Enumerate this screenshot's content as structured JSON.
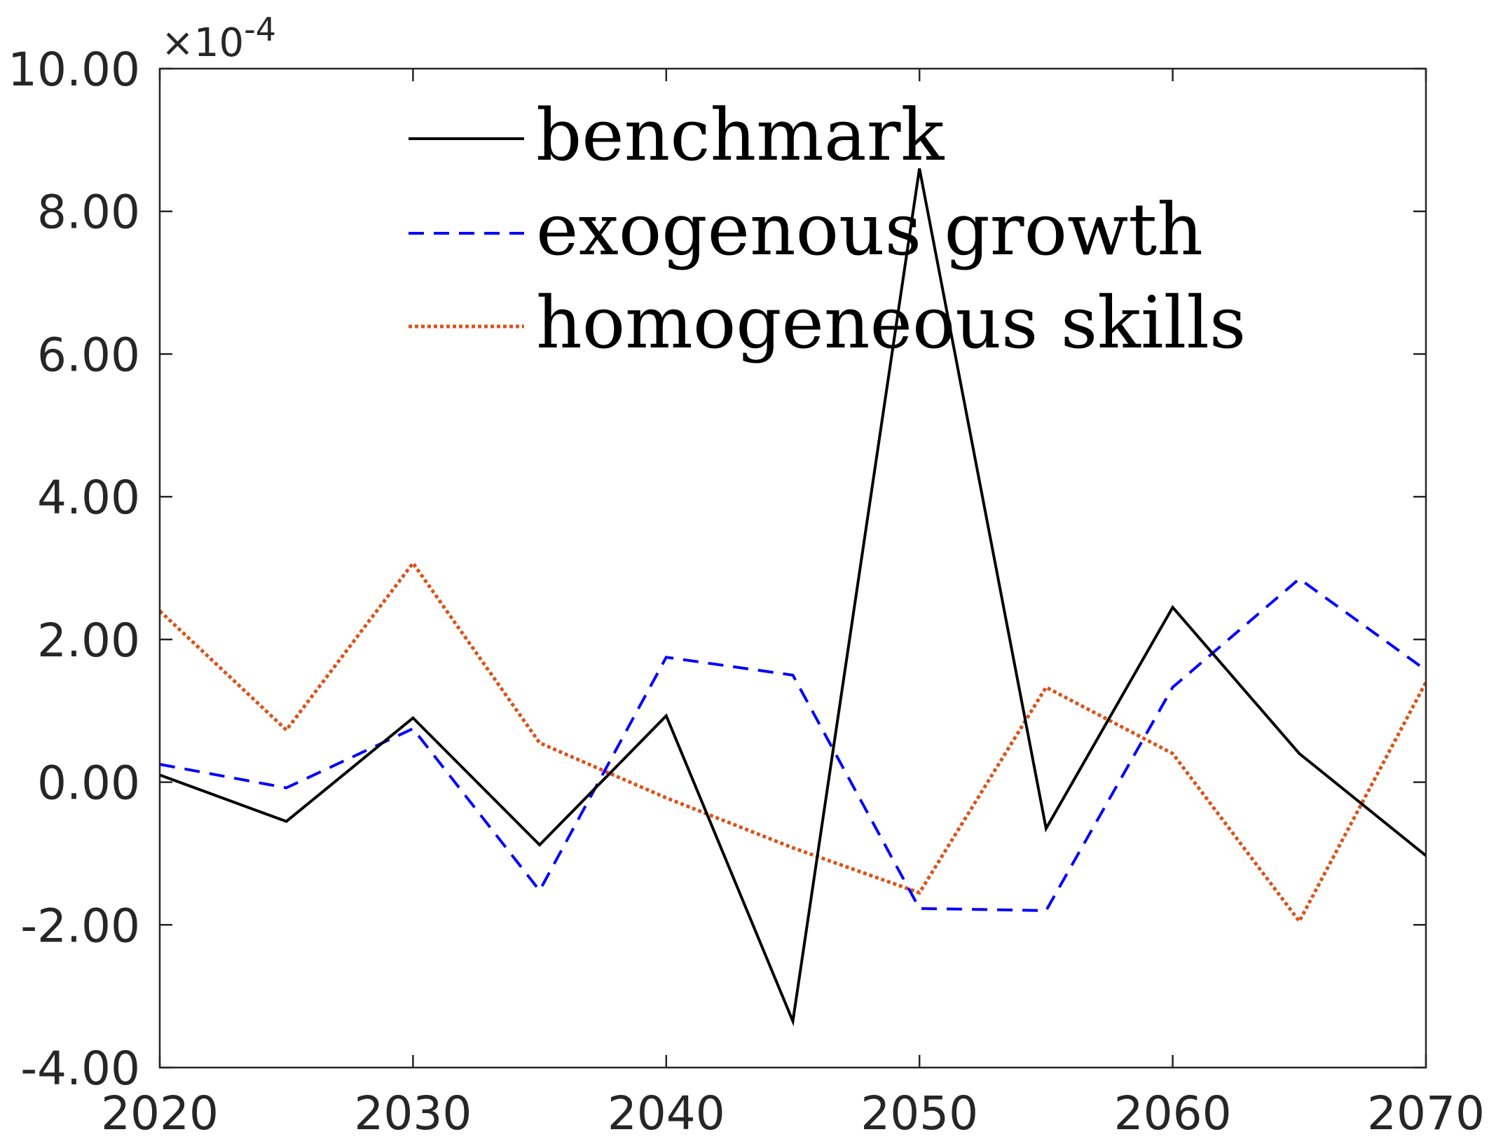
{
  "chart_data": {
    "type": "line",
    "exponent_prefix": "×10",
    "exponent_power": "-4",
    "x": [
      2020,
      2025,
      2030,
      2035,
      2040,
      2045,
      2050,
      2055,
      2060,
      2065,
      2070
    ],
    "xlim": [
      2020,
      2070
    ],
    "ylim": [
      -4,
      10
    ],
    "x_ticks": [
      2020,
      2030,
      2040,
      2050,
      2060,
      2070
    ],
    "x_tick_labels": [
      "2020",
      "2030",
      "2040",
      "2050",
      "2060",
      "2070"
    ],
    "y_ticks": [
      -4,
      -2,
      0,
      2,
      4,
      6,
      8,
      10
    ],
    "y_tick_labels": [
      "-4.00",
      "-2.00",
      "0.00",
      "2.00",
      "4.00",
      "6.00",
      "8.00",
      "10.00"
    ],
    "grid": false,
    "legend_position": "top",
    "series": [
      {
        "name": "benchmark",
        "color": "#000000",
        "style": "solid",
        "values": [
          0.1,
          -0.55,
          0.9,
          -0.88,
          0.93,
          -3.35,
          8.6,
          -0.65,
          2.45,
          0.4,
          -1.03
        ]
      },
      {
        "name": "exogenous growth",
        "color": "#0000ff",
        "style": "dashed",
        "values": [
          0.25,
          -0.08,
          0.75,
          -1.52,
          1.75,
          1.5,
          -1.77,
          -1.8,
          1.33,
          2.85,
          1.57
        ]
      },
      {
        "name": "homogeneous skills",
        "color": "#d95319",
        "style": "dotted",
        "values": [
          2.4,
          0.73,
          3.07,
          0.55,
          -0.22,
          -0.92,
          -1.55,
          1.33,
          0.4,
          -1.95,
          1.4
        ]
      }
    ]
  }
}
